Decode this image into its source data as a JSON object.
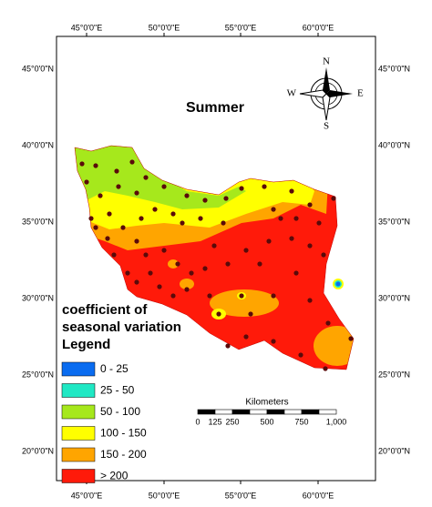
{
  "map": {
    "title": "Summer",
    "compass": {
      "n": "N",
      "e": "E",
      "s": "S",
      "w": "W"
    },
    "longitudes": [
      "45°0'0\"E",
      "50°0'0\"E",
      "55°0'0\"E",
      "60°0'0\"E"
    ],
    "latitudes": [
      "45°0'0\"N",
      "40°0'0\"N",
      "35°0'0\"N",
      "30°0'0\"N",
      "25°0'0\"N",
      "20°0'0\"N"
    ]
  },
  "legend": {
    "heading": [
      "coefficient of",
      "seasonal variation"
    ],
    "title": "Legend",
    "items": [
      {
        "label": "0 - 25",
        "color": "#0a6cf0"
      },
      {
        "label": "25 - 50",
        "color": "#1fe8c4"
      },
      {
        "label": "50 - 100",
        "color": "#a6e81c"
      },
      {
        "label": "100 - 150",
        "color": "#ffff00"
      },
      {
        "label": "150 - 200",
        "color": "#ffa500"
      },
      {
        "label": "> 200",
        "color": "#ff1a0a"
      }
    ]
  },
  "scale_bar": {
    "title": "Kilometers",
    "ticks": [
      "0",
      "125",
      "250",
      "500",
      "750",
      "1,000"
    ]
  }
}
